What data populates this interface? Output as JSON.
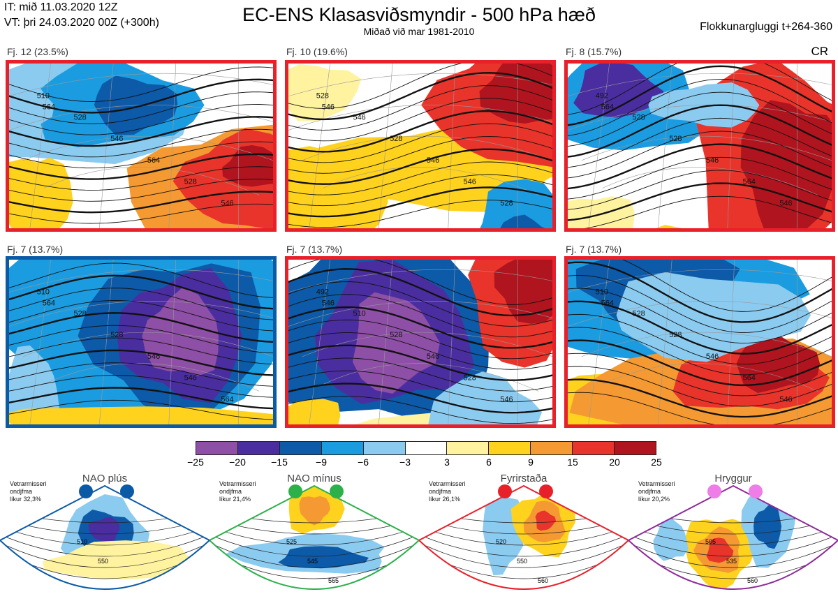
{
  "header": {
    "it": "IT: mið 11.03.2020 12Z",
    "vt": "VT: þri 24.03.2020 00Z  (+300h)",
    "title": "EC-ENS Klasasviðsmyndir - 500 hPa hæð",
    "subtitle": "Miðað við mar 1981-2010",
    "window": "Flokkunargluggi t+264-360",
    "cr": "CR"
  },
  "panels": [
    {
      "label": "Fj. 12 (23.5%)",
      "border": "#e8202a",
      "contours": [
        "510",
        "528",
        "546",
        "564",
        "528",
        "546",
        "564"
      ]
    },
    {
      "label": "Fj. 10 (19.6%)",
      "border": "#e8202a",
      "contours": [
        "528",
        "546",
        "528",
        "546",
        "546",
        "528",
        "546"
      ]
    },
    {
      "label": "Fj. 8 (15.7%)",
      "border": "#e8202a",
      "contours": [
        "492",
        "528",
        "528",
        "546",
        "564",
        "546",
        "564"
      ]
    },
    {
      "label": "Fj. 7 (13.7%)",
      "border": "#0b5aa6",
      "contours": [
        "510",
        "528",
        "528",
        "546",
        "546",
        "564",
        "564"
      ]
    },
    {
      "label": "Fj. 7 (13.7%)",
      "border": "#e8202a",
      "contours": [
        "492",
        "510",
        "528",
        "546",
        "528",
        "546",
        "546"
      ]
    },
    {
      "label": "Fj. 7 (13.7%)",
      "border": "#e8202a",
      "contours": [
        "510",
        "528",
        "528",
        "546",
        "564",
        "546",
        "564"
      ]
    }
  ],
  "colorbar": {
    "colors": [
      "#8e4fa6",
      "#4a2ea0",
      "#0c5aa8",
      "#1b9ce0",
      "#8ccbf0",
      "#ffffff",
      "#fff3a0",
      "#ffd21e",
      "#f59a32",
      "#e8342a",
      "#b0141e"
    ],
    "ticks": [
      "−25",
      "−20",
      "−15",
      "−9",
      "−6",
      "−3",
      "3",
      "6",
      "9",
      "15",
      "20",
      "25"
    ]
  },
  "regimes": [
    {
      "name": "NAO plús",
      "note": [
        "Vetrarmisseri",
        "ondjfma",
        "líkur 32,3%"
      ],
      "dot_color": "#0b5aa6",
      "border": "#0b5aa6",
      "contours": [
        "510",
        "550"
      ]
    },
    {
      "name": "NAO mínus",
      "note": [
        "Vetrarmisseri",
        "ondjfma",
        "líkur 21,4%"
      ],
      "dot_color": "#2bb04a",
      "border": "#2bb04a",
      "contours": [
        "525",
        "545",
        "565"
      ]
    },
    {
      "name": "Fyrirstaða",
      "note": [
        "Vetrarmisseri",
        "ondjfma",
        "líkur 26,1%"
      ],
      "dot_color": "#e8202a",
      "border": "#e8202a",
      "contours": [
        "520",
        "550",
        "560"
      ]
    },
    {
      "name": "Hryggur",
      "note": [
        "Vetrarmisseri",
        "ondjfma",
        "líkur 20,2%"
      ],
      "dot_color": "#ee7de8",
      "border": "#8e2a9a",
      "contours": [
        "505",
        "535",
        "560"
      ]
    }
  ]
}
